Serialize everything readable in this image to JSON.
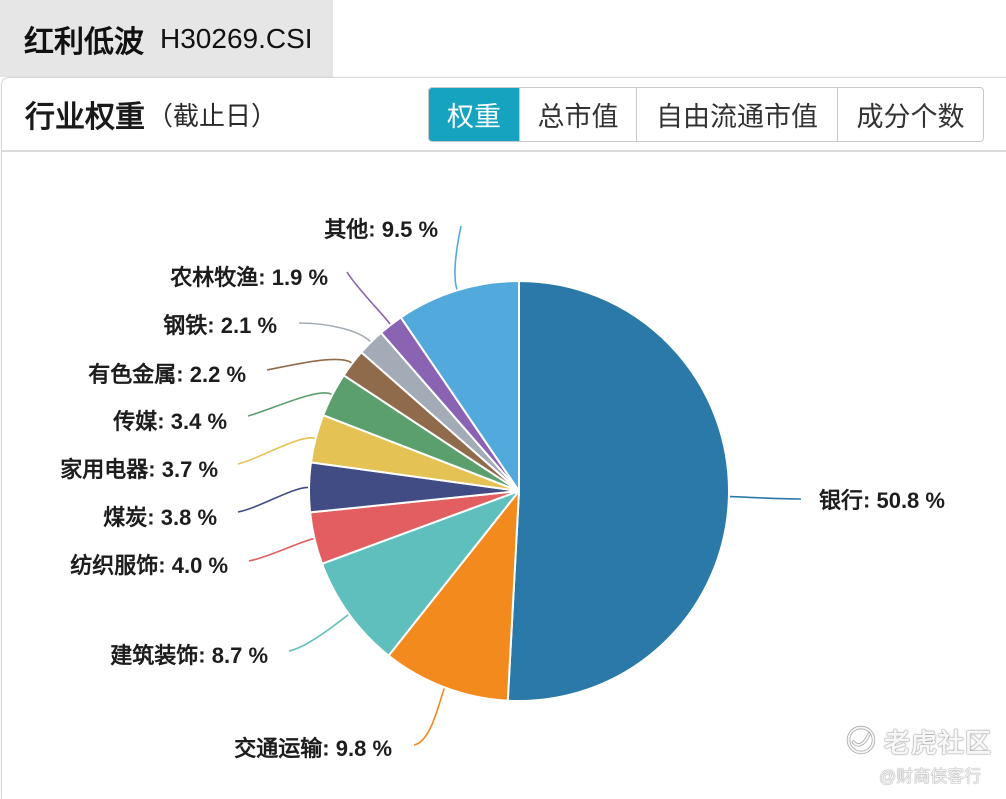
{
  "index_tab": {
    "name": "红利低波",
    "code": "H30269.CSI"
  },
  "panel": {
    "title": "行业权重",
    "subtitle": "（截止日）"
  },
  "toggle": {
    "options": [
      "权重",
      "总市值",
      "自由流通市值",
      "成分个数"
    ],
    "selected_index": 0,
    "active_color": "#16a3bf"
  },
  "chart_data": {
    "type": "pie",
    "categories": [
      "银行",
      "交通运输",
      "建筑装饰",
      "纺织服饰",
      "煤炭",
      "家用电器",
      "传媒",
      "有色金属",
      "钢铁",
      "农林牧渔",
      "其他"
    ],
    "values": [
      50.8,
      9.8,
      8.7,
      4.0,
      3.8,
      3.7,
      3.4,
      2.2,
      2.1,
      1.9,
      9.5
    ],
    "unit": "%",
    "colors": [
      "#2a79a8",
      "#f38a1d",
      "#5fbfbd",
      "#e35e60",
      "#424c84",
      "#e4c253",
      "#5b9f6c",
      "#8f6a4b",
      "#a3acb6",
      "#8a63b2",
      "#52a9dc"
    ]
  },
  "watermark": {
    "icon": "tiger-community-logo-icon",
    "brand": "老虎社区",
    "author": "@财商侠客行"
  }
}
